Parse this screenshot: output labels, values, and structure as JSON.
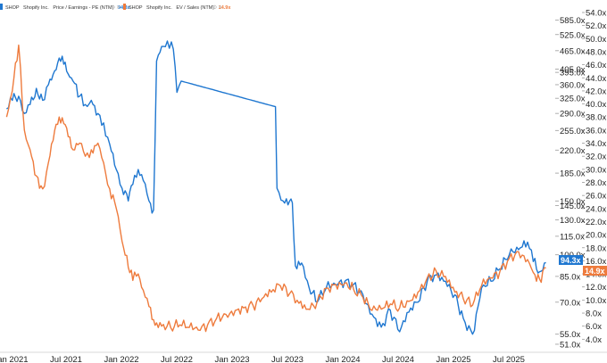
{
  "colors": {
    "pe": "#1f77d0",
    "ev": "#ee7b3d",
    "axis": "#d8d8d8",
    "background": "#ffffff"
  },
  "legend": {
    "pe": {
      "ticker": "SHOP",
      "name": "Shopify Inc.",
      "metric": "Price / Earnings - PE (NTM)",
      "value": "94.3x"
    },
    "ev": {
      "ticker": "SHOP",
      "name": "Shopify Inc.",
      "metric": "EV / Sales (NTM)",
      "value": "14.9x"
    }
  },
  "badges": {
    "pe": "94.3x",
    "ev": "14.9x"
  },
  "chart_data": {
    "type": "line",
    "x_ticks": [
      "Jan 2021",
      "Jul 2021",
      "Jan 2022",
      "Jul 2022",
      "Jan 2023",
      "Jul 2023",
      "Jan 2024",
      "Jul 2024",
      "Jan 2025",
      "Jul 2025"
    ],
    "left_axis": {
      "scale": "log",
      "ticks": [
        "585.0x",
        "525.0x",
        "465.0x",
        "405.0x",
        "395.0x",
        "360.0x",
        "325.0x",
        "290.0x",
        "255.0x",
        "220.0x",
        "185.0x",
        "150.0x",
        "145.0x",
        "130.0x",
        "115.0x",
        "100.0x",
        "85.0x",
        "70.0x",
        "55.0x",
        "51.0x"
      ],
      "range": [
        48,
        620
      ]
    },
    "right_axis": {
      "scale": "linear",
      "ticks": [
        "54.0x",
        "52.0x",
        "50.0x",
        "48.0x",
        "46.0x",
        "44.0x",
        "42.0x",
        "40.0x",
        "38.0x",
        "36.0x",
        "34.0x",
        "32.0x",
        "30.0x",
        "28.0x",
        "26.0x",
        "24.0x",
        "22.0x",
        "20.0x",
        "18.0x",
        "16.0x",
        "14.0x",
        "12.0x",
        "10.0x",
        "8.0x",
        "6.0x",
        "4.0x"
      ],
      "range": [
        2.0,
        54.0
      ]
    },
    "series": [
      {
        "name": "SHOP Shopify Inc. Price / Earnings - PE (NTM)",
        "axis": "left",
        "points": [
          [
            "2021-01-01",
            300
          ],
          [
            "2021-01-20",
            320
          ],
          [
            "2021-02-10",
            330
          ],
          [
            "2021-03-01",
            290
          ],
          [
            "2021-03-20",
            310
          ],
          [
            "2021-04-10",
            350
          ],
          [
            "2021-05-01",
            320
          ],
          [
            "2021-05-20",
            360
          ],
          [
            "2021-06-10",
            400
          ],
          [
            "2021-06-25",
            440
          ],
          [
            "2021-07-10",
            420
          ],
          [
            "2021-07-25",
            390
          ],
          [
            "2021-08-10",
            370
          ],
          [
            "2021-09-01",
            330
          ],
          [
            "2021-09-20",
            310
          ],
          [
            "2021-10-10",
            320
          ],
          [
            "2021-11-01",
            290
          ],
          [
            "2021-11-20",
            270
          ],
          [
            "2021-12-10",
            230
          ],
          [
            "2022-01-01",
            190
          ],
          [
            "2022-01-20",
            165
          ],
          [
            "2022-02-10",
            150
          ],
          [
            "2022-02-25",
            170
          ],
          [
            "2022-03-15",
            190
          ],
          [
            "2022-04-01",
            175
          ],
          [
            "2022-04-20",
            150
          ],
          [
            "2022-05-05",
            140
          ],
          [
            "2022-05-15",
            430
          ],
          [
            "2022-06-01",
            480
          ],
          [
            "2022-06-20",
            500
          ],
          [
            "2022-07-10",
            470
          ],
          [
            "2022-07-22",
            340
          ],
          [
            "2022-08-05",
            370
          ],
          [
            "2023-06-15",
            305
          ],
          [
            "2023-06-20",
            165
          ],
          [
            "2023-07-10",
            150
          ],
          [
            "2023-08-01",
            150
          ],
          [
            "2023-08-10",
            148
          ],
          [
            "2023-08-20",
            92
          ],
          [
            "2023-09-10",
            94
          ],
          [
            "2023-10-05",
            78
          ],
          [
            "2023-11-01",
            70
          ],
          [
            "2023-12-01",
            78
          ],
          [
            "2024-01-01",
            80
          ],
          [
            "2024-02-01",
            82
          ],
          [
            "2024-03-01",
            80
          ],
          [
            "2024-04-01",
            74
          ],
          [
            "2024-05-01",
            64
          ],
          [
            "2024-06-01",
            58
          ],
          [
            "2024-07-01",
            66
          ],
          [
            "2024-08-01",
            56
          ],
          [
            "2024-09-01",
            65
          ],
          [
            "2024-10-01",
            70
          ],
          [
            "2024-11-01",
            82
          ],
          [
            "2024-12-01",
            86
          ],
          [
            "2025-01-01",
            82
          ],
          [
            "2025-02-01",
            74
          ],
          [
            "2025-03-01",
            62
          ],
          [
            "2025-04-01",
            55
          ],
          [
            "2025-05-01",
            78
          ],
          [
            "2025-06-01",
            82
          ],
          [
            "2025-07-01",
            90
          ],
          [
            "2025-08-01",
            100
          ],
          [
            "2025-09-01",
            104
          ],
          [
            "2025-10-01",
            110
          ],
          [
            "2025-10-20",
            95
          ],
          [
            "2025-11-10",
            88
          ],
          [
            "2025-12-01",
            94.3
          ]
        ]
      },
      {
        "name": "SHOP Shopify Inc. EV / Sales (NTM)",
        "axis": "right",
        "points": [
          [
            "2021-01-01",
            38
          ],
          [
            "2021-01-20",
            42
          ],
          [
            "2021-02-10",
            49
          ],
          [
            "2021-03-01",
            36
          ],
          [
            "2021-03-20",
            33
          ],
          [
            "2021-04-10",
            29
          ],
          [
            "2021-05-01",
            27
          ],
          [
            "2021-05-20",
            31
          ],
          [
            "2021-06-10",
            36
          ],
          [
            "2021-06-25",
            38
          ],
          [
            "2021-07-10",
            37
          ],
          [
            "2021-07-25",
            35
          ],
          [
            "2021-08-10",
            33
          ],
          [
            "2021-09-01",
            34
          ],
          [
            "2021-09-20",
            32
          ],
          [
            "2021-10-10",
            33
          ],
          [
            "2021-11-01",
            34
          ],
          [
            "2021-11-20",
            31
          ],
          [
            "2021-12-10",
            27
          ],
          [
            "2022-01-01",
            24
          ],
          [
            "2022-01-20",
            19
          ],
          [
            "2022-02-10",
            15
          ],
          [
            "2022-02-25",
            13
          ],
          [
            "2022-03-15",
            14
          ],
          [
            "2022-04-01",
            11.5
          ],
          [
            "2022-04-20",
            9
          ],
          [
            "2022-05-05",
            7
          ],
          [
            "2022-05-15",
            6.5
          ],
          [
            "2022-06-01",
            6
          ],
          [
            "2022-07-01",
            5.8
          ],
          [
            "2022-08-01",
            6.2
          ],
          [
            "2022-09-01",
            5.8
          ],
          [
            "2022-10-01",
            5.4
          ],
          [
            "2022-11-01",
            6.2
          ],
          [
            "2022-12-01",
            7.2
          ],
          [
            "2023-01-01",
            7.8
          ],
          [
            "2023-02-01",
            8.4
          ],
          [
            "2023-03-01",
            8.8
          ],
          [
            "2023-04-01",
            9.2
          ],
          [
            "2023-05-01",
            10.2
          ],
          [
            "2023-06-01",
            11.2
          ],
          [
            "2023-07-01",
            12.2
          ],
          [
            "2023-08-01",
            11.0
          ],
          [
            "2023-09-01",
            9.5
          ],
          [
            "2023-10-01",
            8.6
          ],
          [
            "2023-11-01",
            9.8
          ],
          [
            "2023-12-01",
            11.8
          ],
          [
            "2024-01-01",
            12.4
          ],
          [
            "2024-02-01",
            12.6
          ],
          [
            "2024-03-01",
            11.6
          ],
          [
            "2024-04-01",
            10.4
          ],
          [
            "2024-05-01",
            8.4
          ],
          [
            "2024-06-01",
            8.6
          ],
          [
            "2024-07-01",
            9.4
          ],
          [
            "2024-08-01",
            8.8
          ],
          [
            "2024-09-01",
            9.8
          ],
          [
            "2024-10-01",
            11.2
          ],
          [
            "2024-11-01",
            13.4
          ],
          [
            "2024-12-01",
            14.4
          ],
          [
            "2025-01-01",
            13.6
          ],
          [
            "2025-02-01",
            11.2
          ],
          [
            "2025-03-01",
            10.2
          ],
          [
            "2025-04-01",
            9.2
          ],
          [
            "2025-05-01",
            12.2
          ],
          [
            "2025-06-01",
            13.4
          ],
          [
            "2025-07-01",
            14.4
          ],
          [
            "2025-08-01",
            16.4
          ],
          [
            "2025-09-01",
            17.4
          ],
          [
            "2025-10-01",
            16.2
          ],
          [
            "2025-10-20",
            14.2
          ],
          [
            "2025-11-10",
            13.2
          ],
          [
            "2025-12-01",
            14.9
          ]
        ]
      }
    ],
    "grid": false,
    "legend_position": "top-left"
  }
}
